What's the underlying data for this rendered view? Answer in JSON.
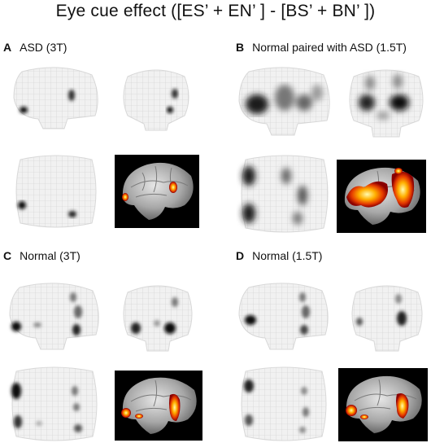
{
  "figure": {
    "title": "Eye cue effect ([ES’ + EN’  ] - [BS’ + BN’  ])",
    "panels": [
      {
        "letter": "A",
        "label": "ASD (3T)"
      },
      {
        "letter": "B",
        "label": "Normal paired with ASD (1.5T)"
      },
      {
        "letter": "C",
        "label": "Normal (3T)"
      },
      {
        "letter": "D",
        "label": "Normal (1.5T)"
      }
    ]
  }
}
